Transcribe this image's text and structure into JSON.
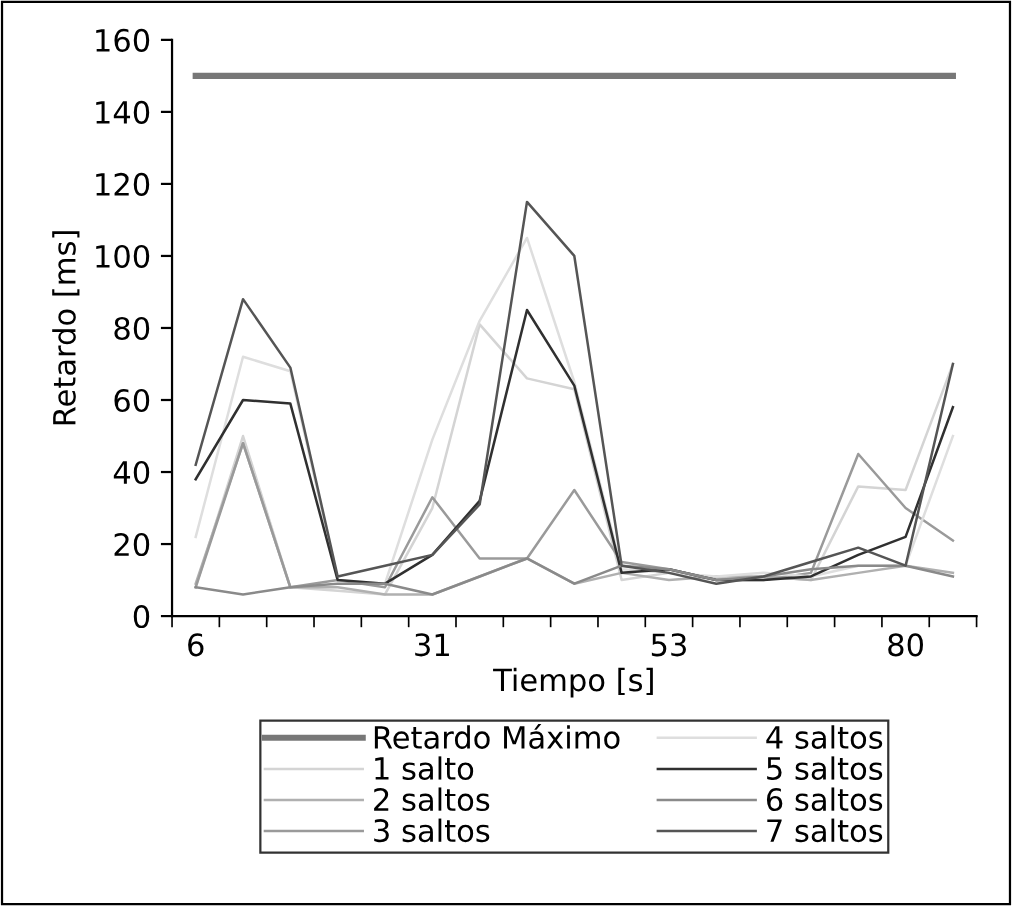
{
  "chart_data": {
    "type": "line",
    "xlabel": "Tiempo [s]",
    "ylabel": "Retardo [ms]",
    "categories": [
      "6",
      null,
      null,
      null,
      null,
      "31",
      null,
      null,
      null,
      null,
      "53",
      null,
      null,
      null,
      null,
      "80",
      null
    ],
    "ylim": [
      0,
      160
    ],
    "yticks": [
      0,
      20,
      40,
      60,
      80,
      100,
      120,
      140,
      160
    ],
    "grid": false,
    "legend": "bottom",
    "marker": "none",
    "line_style": "solid",
    "series": [
      {
        "name": "Retardo Máximo",
        "color": "#777777",
        "values": [
          150,
          150,
          150,
          150,
          150,
          150,
          150,
          150,
          150,
          150,
          150,
          150,
          150,
          150,
          150,
          150,
          150
        ]
      },
      {
        "name": "1 salto",
        "color": "#d4d4d4",
        "values": [
          8,
          50,
          8,
          7,
          6,
          30,
          81,
          66,
          63,
          10,
          12,
          10,
          11,
          10,
          36,
          35,
          70
        ]
      },
      {
        "name": "2 saltos",
        "color": "#b0b0b0",
        "values": [
          9,
          48,
          8,
          8,
          6,
          6,
          11,
          16,
          9,
          12,
          10,
          11,
          11,
          10,
          12,
          14,
          12
        ]
      },
      {
        "name": "3 saltos",
        "color": "#9a9a9a",
        "values": [
          8,
          48,
          8,
          10,
          8,
          33,
          16,
          16,
          35,
          15,
          13,
          10,
          10,
          12,
          45,
          30,
          21
        ]
      },
      {
        "name": "4 saltos",
        "color": "#dedede",
        "values": [
          22,
          72,
          68,
          10,
          9,
          49,
          82,
          105,
          65,
          13,
          12,
          11,
          12,
          11,
          14,
          14,
          50
        ]
      },
      {
        "name": "5 saltos",
        "color": "#303030",
        "values": [
          38,
          60,
          59,
          10,
          9,
          17,
          32,
          85,
          64,
          12,
          13,
          10,
          10,
          11,
          17,
          22,
          58
        ]
      },
      {
        "name": "6 saltos",
        "color": "#8a8a8a",
        "values": [
          8,
          6,
          8,
          9,
          9,
          6,
          11,
          16,
          9,
          14,
          13,
          10,
          11,
          13,
          14,
          14,
          11
        ]
      },
      {
        "name": "7 saltos",
        "color": "#555555",
        "values": [
          42,
          88,
          69,
          11,
          14,
          17,
          31,
          115,
          100,
          14,
          12,
          9,
          11,
          15,
          19,
          14,
          70
        ]
      }
    ]
  }
}
